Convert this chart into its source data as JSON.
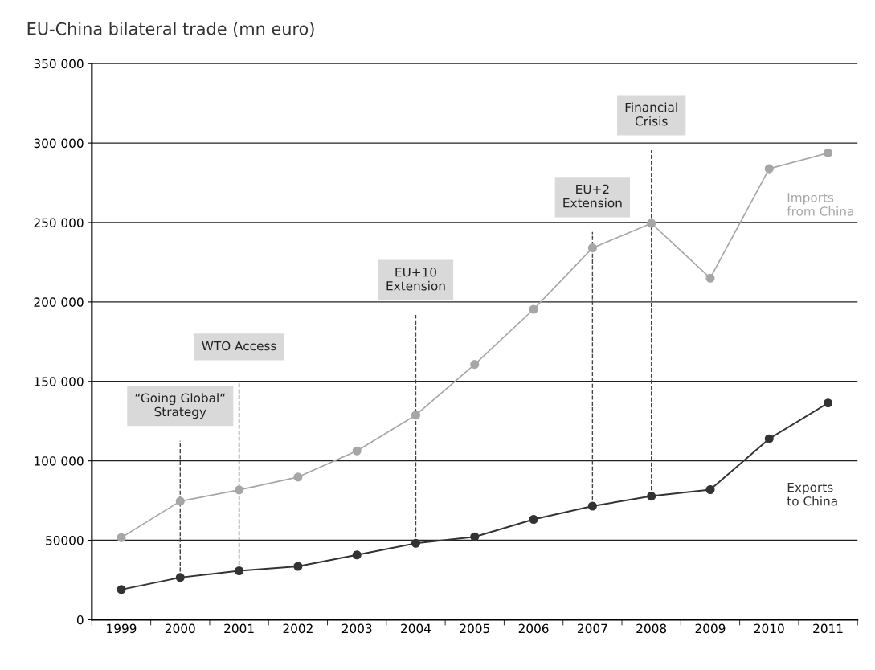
{
  "chart_data": {
    "type": "line",
    "title": "EU-China bilateral trade (mn euro)",
    "categories": [
      "1999",
      "2000",
      "2001",
      "2002",
      "2003",
      "2004",
      "2005",
      "2006",
      "2007",
      "2008",
      "2009",
      "2010",
      "2011"
    ],
    "series": [
      {
        "name": "Imports from China",
        "color": "#a6a6a6",
        "values": [
          51700,
          74600,
          81700,
          89800,
          106300,
          128800,
          160700,
          195400,
          234000,
          249500,
          215000,
          283800,
          293800
        ]
      },
      {
        "name": "Exports to China",
        "color": "#333333",
        "values": [
          19000,
          26600,
          30800,
          33600,
          40800,
          48100,
          52200,
          63200,
          71500,
          77800,
          81900,
          113900,
          136400
        ]
      }
    ],
    "ylim": [
      0,
      350000
    ],
    "yticks": [
      0,
      50000,
      {
        "value": 100000,
        "label": "100 000"
      },
      {
        "value": 150000,
        "label": "150 000"
      },
      {
        "value": 200000,
        "label": "200 000"
      },
      {
        "value": 250000,
        "label": "250 000"
      },
      {
        "value": 300000,
        "label": "300 000"
      },
      {
        "value": 350000,
        "label": "350 000"
      }
    ],
    "ref_lines": [
      {
        "axis": "x",
        "value": "2000",
        "label": "“Going Global“\nStrategy",
        "line_style": "dashed"
      },
      {
        "axis": "x",
        "value": "2001",
        "label": "WTO Access",
        "line_style": "dashed"
      },
      {
        "axis": "x",
        "value": "2004",
        "label": "EU+10\nExtension",
        "line_style": "dashed"
      },
      {
        "axis": "x",
        "value": "2007",
        "label": "EU+2\nExtension",
        "line_style": "dashed"
      },
      {
        "axis": "x",
        "value": "2008",
        "label": "Financial\nCrisis",
        "line_style": "dashed"
      }
    ],
    "grid": "y",
    "legend": false,
    "marker": "circle",
    "line_style": "solid"
  }
}
